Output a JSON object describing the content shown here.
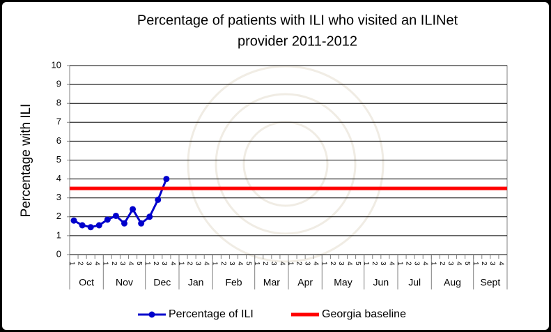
{
  "chart_data": {
    "type": "line",
    "title": "Percentage of patients with ILI who visited an ILINet provider 2011-2012",
    "y_label": "Percentage with ILI",
    "ylim": [
      0,
      10
    ],
    "yticks": [
      0,
      1,
      2,
      3,
      4,
      5,
      6,
      7,
      8,
      9,
      10
    ],
    "grid": true,
    "categories": [
      "1",
      "2",
      "3",
      "4",
      "1",
      "2",
      "3",
      "4",
      "5",
      "1",
      "2",
      "3",
      "4",
      "1",
      "2",
      "3",
      "4",
      "1",
      "2",
      "3",
      "4",
      "5",
      "1",
      "2",
      "3",
      "4",
      "1",
      "2",
      "3",
      "4",
      "1",
      "2",
      "3",
      "4",
      "5",
      "1",
      "2",
      "3",
      "4",
      "1",
      "2",
      "3",
      "4",
      "1",
      "2",
      "3",
      "4",
      "5",
      "1",
      "2",
      "3",
      "4"
    ],
    "months": [
      {
        "name": "Oct",
        "weeks": 4
      },
      {
        "name": "Nov",
        "weeks": 5
      },
      {
        "name": "Dec",
        "weeks": 4
      },
      {
        "name": "Jan",
        "weeks": 4
      },
      {
        "name": "Feb",
        "weeks": 5
      },
      {
        "name": "Mar",
        "weeks": 4
      },
      {
        "name": "Apr",
        "weeks": 4
      },
      {
        "name": "May",
        "weeks": 5
      },
      {
        "name": "Jun",
        "weeks": 4
      },
      {
        "name": "Jul",
        "weeks": 4
      },
      {
        "name": "Aug",
        "weeks": 5
      },
      {
        "name": "Sept",
        "weeks": 4
      }
    ],
    "series": [
      {
        "name": "Percentage of ILI",
        "color": "#0000cc",
        "values": [
          1.8,
          1.55,
          1.45,
          1.55,
          1.85,
          2.05,
          1.65,
          2.4,
          1.65,
          2.0,
          2.9,
          4.0,
          null,
          null,
          null,
          null,
          null,
          null,
          null,
          null,
          null,
          null,
          null,
          null,
          null,
          null,
          null,
          null,
          null,
          null,
          null,
          null,
          null,
          null,
          null,
          null,
          null,
          null,
          null,
          null,
          null,
          null,
          null,
          null,
          null,
          null,
          null,
          null,
          null,
          null,
          null,
          null
        ]
      },
      {
        "name": "Georgia baseline",
        "color": "#ff0000",
        "value": 3.5
      }
    ]
  }
}
